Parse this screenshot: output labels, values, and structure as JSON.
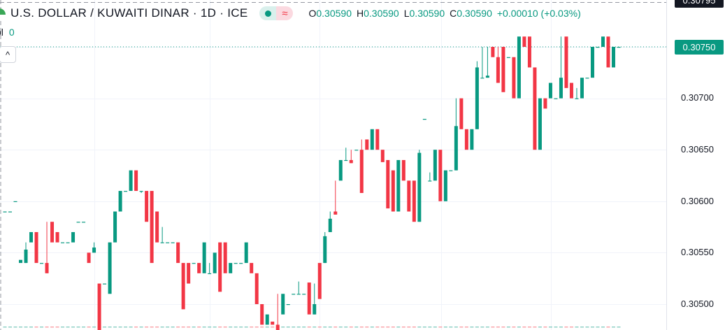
{
  "header": {
    "title": "U.S. DOLLAR / KUWAITI DINAR · 1D · ICE",
    "status_icons": [
      "market-open-dot-icon",
      "delayed-data-icon"
    ],
    "delayed_glyph": "≈",
    "ohlc": {
      "o_label": "O",
      "o": "0.30590",
      "h_label": "H",
      "h": "0.30590",
      "l_label": "L",
      "l": "0.30590",
      "c_label": "C",
      "c": "0.30590",
      "change": "+0.00010 (+0.03%)"
    },
    "volume_label": "ol",
    "volume_value": "0",
    "collapse_glyph": "^"
  },
  "price_axis": {
    "labels": [
      "0.30700",
      "0.30650",
      "0.30600",
      "0.30550",
      "0.30500"
    ],
    "last_price": "0.30750",
    "crosshair_price": "0.30795"
  },
  "colors": {
    "up": "#089981",
    "down": "#F23645",
    "grid": "#f0f3fa",
    "text": "#131722"
  },
  "chart_data": {
    "type": "candlestick",
    "title": "U.S. DOLLAR / KUWAITI DINAR · 1D · ICE",
    "ylim": [
      0.30467,
      0.30795
    ],
    "grid": true,
    "last_price": 0.3075,
    "ohlc_columns": [
      "open",
      "high",
      "low",
      "close"
    ],
    "candles": [
      [
        0.3059,
        0.3059,
        0.3059,
        0.3059
      ],
      [
        0.3059,
        0.3059,
        0.3059,
        0.3059
      ],
      [
        0.306,
        0.306,
        0.306,
        0.306
      ],
      [
        0.3054,
        0.30543,
        0.3054,
        0.30543
      ],
      [
        0.3054,
        0.3056,
        0.3054,
        0.30553
      ],
      [
        0.3056,
        0.3057,
        0.3056,
        0.3057
      ],
      [
        0.3057,
        0.3057,
        0.3054,
        0.3054
      ],
      [
        0.3054,
        0.3054,
        0.3054,
        0.3054
      ],
      [
        0.3054,
        0.3058,
        0.3053,
        0.3053
      ],
      [
        0.3058,
        0.3058,
        0.3056,
        0.3056
      ],
      [
        0.3057,
        0.3057,
        0.3056,
        0.3056
      ],
      [
        0.3056,
        0.3056,
        0.3056,
        0.3056
      ],
      [
        0.3056,
        0.3056,
        0.3056,
        0.3056
      ],
      [
        0.3056,
        0.3057,
        0.3056,
        0.3057
      ],
      [
        0.3058,
        0.3058,
        0.3058,
        0.3058
      ],
      [
        0.3058,
        0.3058,
        0.3058,
        0.3058
      ],
      [
        0.3055,
        0.3055,
        0.3054,
        0.3054
      ],
      [
        0.3055,
        0.3056,
        0.3055,
        0.30555
      ],
      [
        0.3052,
        0.3052,
        0.3047,
        0.3047
      ],
      [
        0.3052,
        0.3052,
        0.3052,
        0.3052
      ],
      [
        0.3051,
        0.3056,
        0.3051,
        0.3056
      ],
      [
        0.3056,
        0.3059,
        0.3056,
        0.3059
      ],
      [
        0.3059,
        0.3061,
        0.3059,
        0.3061
      ],
      [
        0.3061,
        0.3061,
        0.3061,
        0.3061
      ],
      [
        0.3061,
        0.3063,
        0.3061,
        0.3063
      ],
      [
        0.3063,
        0.3063,
        0.3061,
        0.3061
      ],
      [
        0.3061,
        0.3061,
        0.30608,
        0.3061
      ],
      [
        0.3061,
        0.3061,
        0.3058,
        0.3058
      ],
      [
        0.3061,
        0.3061,
        0.3054,
        0.3054
      ],
      [
        0.3059,
        0.3059,
        0.3056,
        0.3056
      ],
      [
        0.3056,
        0.30575,
        0.3056,
        0.3056
      ],
      [
        0.3056,
        0.3056,
        0.3056,
        0.3056
      ],
      [
        0.3056,
        0.3056,
        0.3056,
        0.3056
      ],
      [
        0.3056,
        0.3056,
        0.3054,
        0.3054
      ],
      [
        0.3054,
        0.3054,
        0.30495,
        0.30495
      ],
      [
        0.3054,
        0.3054,
        0.3052,
        0.3052
      ],
      [
        0.3054,
        0.3054,
        0.3054,
        0.3054
      ],
      [
        0.3054,
        0.3054,
        0.3053,
        0.3053
      ],
      [
        0.3053,
        0.3056,
        0.3053,
        0.3056
      ],
      [
        0.3053,
        0.3054,
        0.3053,
        0.3053
      ],
      [
        0.3053,
        0.3055,
        0.3053,
        0.3055
      ],
      [
        0.3056,
        0.3056,
        0.30512,
        0.30512
      ],
      [
        0.3056,
        0.3056,
        0.3053,
        0.3053
      ],
      [
        0.3053,
        0.3054,
        0.3053,
        0.3054
      ],
      [
        0.3054,
        0.3054,
        0.3054,
        0.3054
      ],
      [
        0.3054,
        0.3054,
        0.3054,
        0.3054
      ],
      [
        0.3054,
        0.3056,
        0.3054,
        0.3056
      ],
      [
        0.3054,
        0.3054,
        0.3053,
        0.3053
      ],
      [
        0.3053,
        0.3053,
        0.305,
        0.305
      ],
      [
        0.305,
        0.305,
        0.3048,
        0.3048
      ],
      [
        0.3048,
        0.3049,
        0.3048,
        0.3049
      ],
      [
        0.30483,
        0.30483,
        0.3048,
        0.3048
      ],
      [
        0.3048,
        0.3051,
        0.30473,
        0.30473
      ],
      [
        0.3049,
        0.3051,
        0.3049,
        0.3051
      ],
      [
        0.305,
        0.305,
        0.305,
        0.305
      ],
      [
        0.3051,
        0.3051,
        0.3051,
        0.3051
      ],
      [
        0.3051,
        0.30522,
        0.3051,
        0.3051
      ],
      [
        0.3051,
        0.3051,
        0.3051,
        0.3051
      ],
      [
        0.30521,
        0.30521,
        0.3049,
        0.3049
      ],
      [
        0.3049,
        0.3052,
        0.3049,
        0.305
      ],
      [
        0.3054,
        0.3054,
        0.30505,
        0.30505
      ],
      [
        0.3054,
        0.3057,
        0.3054,
        0.30566
      ],
      [
        0.3057,
        0.3059,
        0.3057,
        0.30583
      ],
      [
        0.3059,
        0.3062,
        0.30587,
        0.30587
      ],
      [
        0.3062,
        0.3064,
        0.3062,
        0.3064
      ],
      [
        0.3064,
        0.30652,
        0.3064,
        0.3064
      ],
      [
        0.3064,
        0.3065,
        0.30637,
        0.30637
      ],
      [
        0.3065,
        0.3065,
        0.3065,
        0.3065
      ],
      [
        0.3065,
        0.3066,
        0.30608,
        0.30608
      ],
      [
        0.3066,
        0.3066,
        0.3065,
        0.3065
      ],
      [
        0.3065,
        0.3067,
        0.3065,
        0.3067
      ],
      [
        0.3067,
        0.3067,
        0.3065,
        0.3065
      ],
      [
        0.3065,
        0.3065,
        0.30638,
        0.30638
      ],
      [
        0.3064,
        0.3064,
        0.30593,
        0.30593
      ],
      [
        0.3063,
        0.3063,
        0.3059,
        0.3059
      ],
      [
        0.3059,
        0.3064,
        0.3059,
        0.3064
      ],
      [
        0.3064,
        0.3064,
        0.3062,
        0.3062
      ],
      [
        0.3062,
        0.3062,
        0.3059,
        0.3059
      ],
      [
        0.3062,
        0.3062,
        0.3058,
        0.3058
      ],
      [
        0.3058,
        0.3065,
        0.3058,
        0.30647
      ],
      [
        0.3068,
        0.3068,
        0.3068,
        0.3068
      ],
      [
        0.3062,
        0.30628,
        0.3062,
        0.3062
      ],
      [
        0.3062,
        0.3065,
        0.3062,
        0.3065
      ],
      [
        0.3065,
        0.3065,
        0.306,
        0.306
      ],
      [
        0.306,
        0.3063,
        0.306,
        0.3063
      ],
      [
        0.3063,
        0.3063,
        0.3063,
        0.3063
      ],
      [
        0.3063,
        0.307,
        0.3063,
        0.30673
      ],
      [
        0.307,
        0.307,
        0.3067,
        0.3067
      ],
      [
        0.3067,
        0.3067,
        0.3065,
        0.3065
      ],
      [
        0.3065,
        0.3067,
        0.3065,
        0.3067
      ],
      [
        0.3067,
        0.30736,
        0.3067,
        0.3073
      ],
      [
        0.3072,
        0.3075,
        0.3072,
        0.3072
      ],
      [
        0.3072,
        0.3075,
        0.3072,
        0.30722
      ],
      [
        0.3075,
        0.3075,
        0.3074,
        0.3074
      ],
      [
        0.3074,
        0.3075,
        0.30715,
        0.30715
      ],
      [
        0.3075,
        0.3075,
        0.30706,
        0.30706
      ],
      [
        0.3074,
        0.3074,
        0.3074,
        0.3074
      ],
      [
        0.3074,
        0.3074,
        0.307,
        0.307
      ],
      [
        0.307,
        0.3076,
        0.307,
        0.3076
      ],
      [
        0.3076,
        0.3076,
        0.3075,
        0.3075
      ],
      [
        0.3076,
        0.3076,
        0.3073,
        0.3073
      ],
      [
        0.3073,
        0.3073,
        0.3065,
        0.3065
      ],
      [
        0.3065,
        0.307,
        0.3065,
        0.307
      ],
      [
        0.307,
        0.307,
        0.3069,
        0.3069
      ],
      [
        0.307,
        0.30715,
        0.307,
        0.30715
      ],
      [
        0.307,
        0.307,
        0.307,
        0.307
      ],
      [
        0.307,
        0.3076,
        0.307,
        0.3072
      ],
      [
        0.3076,
        0.3076,
        0.3071,
        0.3071
      ],
      [
        0.30715,
        0.30715,
        0.307,
        0.307
      ],
      [
        0.307,
        0.3071,
        0.307,
        0.307
      ],
      [
        0.307,
        0.3072,
        0.307,
        0.3072
      ],
      [
        0.3072,
        0.3072,
        0.3072,
        0.3072
      ],
      [
        0.3072,
        0.3075,
        0.3072,
        0.3075
      ],
      [
        0.3075,
        0.3075,
        0.3075,
        0.3075
      ],
      [
        0.3075,
        0.3076,
        0.3075,
        0.3076
      ],
      [
        0.3076,
        0.3076,
        0.3073,
        0.3073
      ],
      [
        0.3073,
        0.3075,
        0.3073,
        0.3075
      ],
      [
        0.3075,
        0.3075,
        0.3075,
        0.3075
      ]
    ]
  }
}
